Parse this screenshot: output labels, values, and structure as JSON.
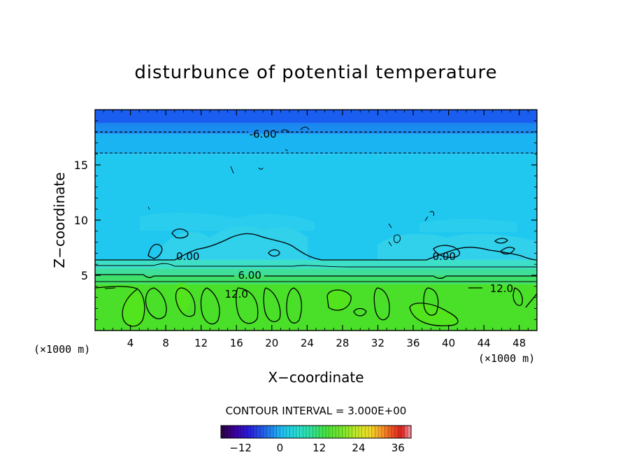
{
  "chart_data": {
    "type": "contour",
    "title": "disturbunce of potential temperature",
    "xlabel": "X−coordinate",
    "ylabel": "Z−coordinate",
    "x_unit_left": "(×1000 m)",
    "x_unit_right": "(×1000 m)",
    "xlim": [
      0,
      50
    ],
    "ylim": [
      0,
      20
    ],
    "x_ticks": [
      4,
      8,
      12,
      16,
      20,
      24,
      28,
      32,
      36,
      40,
      44,
      48
    ],
    "y_ticks": [
      5,
      10,
      15
    ],
    "x_tick_labels": [
      "4",
      "8",
      "12",
      "16",
      "20",
      "24",
      "28",
      "32",
      "36",
      "40",
      "44",
      "48"
    ],
    "y_tick_labels": [
      "5",
      "10",
      "15"
    ],
    "contour_interval_text": "CONTOUR INTERVAL = 3.000E+00",
    "contour_labels": [
      {
        "text": "-6.00",
        "x": 19.0,
        "y": 17.8
      },
      {
        "text": "0.00",
        "x": 10.5,
        "y": 6.7
      },
      {
        "text": "0.00",
        "x": 39.5,
        "y": 6.7
      },
      {
        "text": "6.00",
        "x": 17.5,
        "y": 5.0
      },
      {
        "text": "12.0",
        "x": 16.0,
        "y": 3.3
      },
      {
        "text": "12.0",
        "x": 46.0,
        "y": 3.8
      }
    ],
    "bands": [
      {
        "z0": 0.0,
        "z1": 4.2,
        "value": 12,
        "color": "#4ae02a"
      },
      {
        "z0": 4.2,
        "z1": 5.0,
        "value": 9,
        "color": "#3fe06a"
      },
      {
        "z0": 5.0,
        "z1": 5.6,
        "value": 6,
        "color": "#3fdf9a"
      },
      {
        "z0": 5.6,
        "z1": 6.4,
        "value": 3,
        "color": "#3ddfc8"
      },
      {
        "z0": 6.4,
        "z1": 16.0,
        "value": -3,
        "color": "#20c8f0"
      },
      {
        "z0": 16.0,
        "z1": 17.8,
        "value": -6,
        "color": "#1ab4f2"
      },
      {
        "z0": 17.8,
        "z1": 18.8,
        "value": -9,
        "color": "#1a8cf0"
      },
      {
        "z0": 18.8,
        "z1": 20.0,
        "value": -12,
        "color": "#1a5ef0"
      }
    ],
    "colorbar": {
      "range": [
        -18,
        40
      ],
      "tick_values": [
        -12,
        0,
        12,
        24,
        36
      ],
      "tick_labels": [
        "−12",
        "0",
        "12",
        "24",
        "36"
      ]
    }
  }
}
